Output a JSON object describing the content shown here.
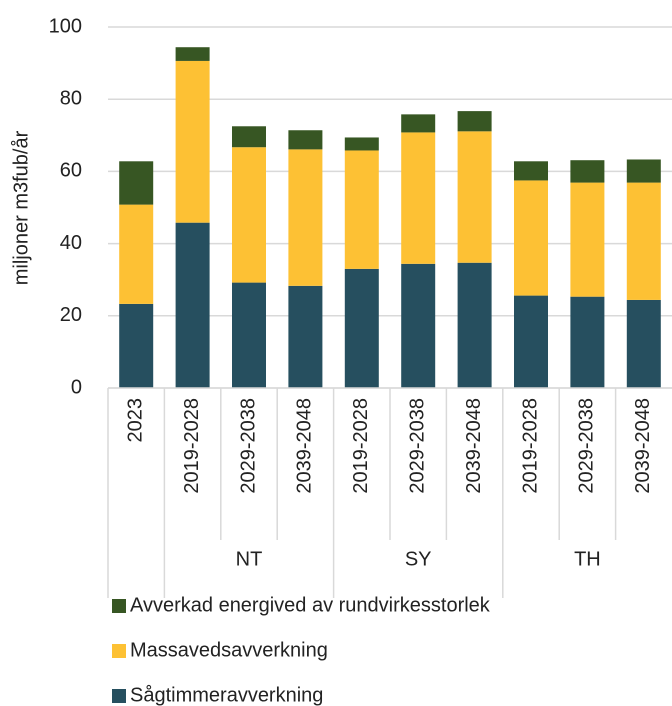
{
  "chart_data": {
    "type": "stacked_bar",
    "y_label": "miljoner m3fub/år",
    "categories": [
      "2023",
      "2019-2028",
      "2029-2038",
      "2039-2048",
      "2019-2028",
      "2029-2038",
      "2039-2048",
      "2019-2028",
      "2029-2038",
      "2039-2048"
    ],
    "group_labels": [
      null,
      "NT",
      "NT",
      "NT",
      "SY",
      "SY",
      "SY",
      "TH",
      "TH",
      "TH"
    ],
    "series": [
      {
        "name": "Sågtimmeravverkning",
        "color": "#264f5f",
        "values": [
          23.3,
          45.8,
          29.2,
          28.3,
          33.0,
          34.4,
          34.7,
          25.6,
          25.3,
          24.4
        ]
      },
      {
        "name": "Massavedsavverkning",
        "color": "#fdc134",
        "values": [
          27.5,
          44.8,
          37.5,
          37.8,
          32.8,
          36.4,
          36.4,
          31.9,
          31.6,
          32.5
        ]
      },
      {
        "name": "Avverkad energived av rundvirkesstorlek",
        "color": "#375623",
        "values": [
          12.0,
          3.8,
          5.8,
          5.3,
          3.6,
          5.0,
          5.6,
          5.3,
          6.2,
          6.4
        ]
      }
    ],
    "ylim": [
      0,
      100
    ],
    "yticks": [
      0,
      20,
      40,
      60,
      80,
      100
    ],
    "grid": true
  }
}
